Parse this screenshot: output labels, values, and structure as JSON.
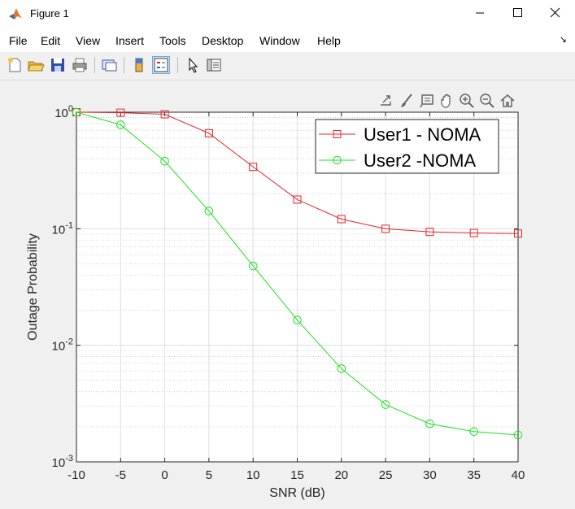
{
  "window": {
    "title": "Figure 1",
    "controls": [
      "minimize",
      "maximize",
      "close"
    ]
  },
  "menu": [
    "File",
    "Edit",
    "View",
    "Insert",
    "Tools",
    "Desktop",
    "Window",
    "Help"
  ],
  "toolbar_icons": [
    "new-figure-icon",
    "open-file-icon",
    "save-icon",
    "print-icon",
    "link-plot-icon",
    "colorbar-icon",
    "legend-icon",
    "edit-plot-icon",
    "property-inspector-icon"
  ],
  "axes_toolbar_icons": [
    "export-icon",
    "brush-icon",
    "data-tips-icon",
    "pan-icon",
    "zoom-in-icon",
    "zoom-out-icon",
    "home-icon"
  ],
  "chart_data": {
    "type": "line",
    "xlabel": "SNR (dB)",
    "ylabel": "Outage Probability",
    "xlim": [
      -10,
      40
    ],
    "ylim": [
      0.001,
      1
    ],
    "yscale": "log",
    "grid": true,
    "minor_grid": true,
    "xticks": [
      -10,
      -5,
      0,
      5,
      10,
      15,
      20,
      25,
      30,
      35,
      40
    ],
    "xtick_labels": [
      "-10",
      "-5",
      "0",
      "5",
      "10",
      "15",
      "20",
      "25",
      "30",
      "35",
      "40"
    ],
    "ytick_labels": [
      {
        "base": "10",
        "exp": "-3",
        "value": 0.001
      },
      {
        "base": "10",
        "exp": "-2",
        "value": 0.01
      },
      {
        "base": "10",
        "exp": "-1",
        "value": 0.1
      },
      {
        "base": "10",
        "exp": "0",
        "value": 1
      }
    ],
    "legend_position": "top-right",
    "x": [
      -10,
      -5,
      0,
      5,
      10,
      15,
      20,
      25,
      30,
      35,
      40
    ],
    "series": [
      {
        "name": "User1 - NOMA",
        "color": "#e4252a",
        "marker": "square",
        "values": [
          1.0,
          0.99,
          0.96,
          0.66,
          0.34,
          0.178,
          0.121,
          0.1,
          0.094,
          0.092,
          0.091
        ]
      },
      {
        "name": "User2 -NOMA",
        "color": "#22e022",
        "marker": "circle",
        "values": [
          1.0,
          0.78,
          0.38,
          0.142,
          0.048,
          0.0165,
          0.0063,
          0.0031,
          0.00212,
          0.00182,
          0.0017
        ]
      }
    ]
  }
}
